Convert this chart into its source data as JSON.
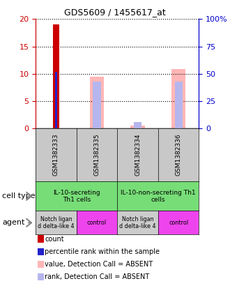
{
  "title": "GDS5609 / 1455617_at",
  "samples": [
    "GSM1382333",
    "GSM1382335",
    "GSM1382334",
    "GSM1382336"
  ],
  "ylim_left": [
    0,
    20
  ],
  "ylim_right": [
    0,
    100
  ],
  "yticks_left": [
    0,
    5,
    10,
    15,
    20
  ],
  "yticks_right": [
    0,
    25,
    50,
    75,
    100
  ],
  "ytick_labels_right": [
    "0",
    "25",
    "50",
    "75",
    "100%"
  ],
  "count_bars": [
    19.0,
    0,
    0,
    0
  ],
  "count_color": "#cc0000",
  "percentile_rank_bars": [
    10.4,
    0,
    0,
    0
  ],
  "percentile_rank_color": "#2222cc",
  "value_absent_bars": [
    0,
    9.5,
    0.5,
    10.8
  ],
  "value_absent_color": "#ffb6b6",
  "rank_absent_bars": [
    0,
    8.5,
    1.1,
    8.5
  ],
  "rank_absent_color": "#b6b6ee",
  "cell_type_labels": [
    "IL-10-secreting\nTh1 cells",
    "IL-10-non-secreting Th1\ncells"
  ],
  "agent_labels": [
    "Notch ligan\nd delta-like 4",
    "control",
    "Notch ligan\nd delta-like 4",
    "control"
  ],
  "cell_type_color": "#77dd77",
  "agent_color_notch": "#cccccc",
  "agent_color_control": "#ee44ee",
  "sample_bg_color": "#c8c8c8",
  "left_axis_color": "#cc0000",
  "right_axis_color": "#0000cc",
  "legend_items": [
    {
      "label": "count",
      "color": "#cc0000"
    },
    {
      "label": "percentile rank within the sample",
      "color": "#2222cc"
    },
    {
      "label": "value, Detection Call = ABSENT",
      "color": "#ffb6b6"
    },
    {
      "label": "rank, Detection Call = ABSENT",
      "color": "#b6b6ee"
    }
  ]
}
